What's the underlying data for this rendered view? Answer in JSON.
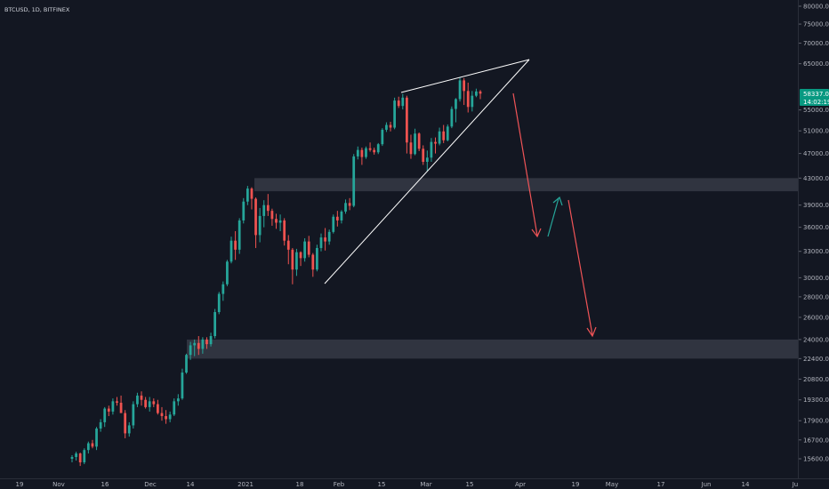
{
  "chart_data": {
    "type": "candlestick",
    "symbol": "BTCUSD, 1D, BITFINEX",
    "y_scale": "log",
    "ylim": [
      14500,
      82000
    ],
    "price_ticks": [
      "80000.0",
      "75000.0",
      "70000.0",
      "65000.0",
      "55000.0",
      "51000.0",
      "47000.0",
      "43000.0",
      "39000.0",
      "36000.0",
      "33000.0",
      "30000.0",
      "28000.0",
      "26000.0",
      "24000.0",
      "22400.0",
      "20800.0",
      "19300.0",
      "17900.0",
      "16700.0",
      "15600.0"
    ],
    "date_ticks": [
      "19",
      "Nov",
      "16",
      "Dec",
      "14",
      "2021",
      "18",
      "Feb",
      "15",
      "Mar",
      "15",
      "Apr",
      "19",
      "May",
      "17",
      "Jun",
      "14",
      "Ju"
    ],
    "last_price": {
      "price": "58337.0",
      "countdown": "14:02:19"
    },
    "zones": [
      {
        "name": "resistance-zone",
        "from": 41000,
        "to": 43000
      },
      {
        "name": "support-zone",
        "from": 22400,
        "to": 24000
      }
    ],
    "colors": {
      "bg": "#131722",
      "up": "#26a69a",
      "down": "#ef5350",
      "zone": "#363a45",
      "line": "#ffffff",
      "down_arrow": "#f05457",
      "up_arrow": "#26a69a",
      "axis_border": "#2a2e39",
      "price_label": "#089981"
    },
    "candles": [
      [
        15600,
        15800,
        15400,
        15700
      ],
      [
        15700,
        16000,
        15500,
        15900
      ],
      [
        15900,
        15950,
        15200,
        15400
      ],
      [
        15400,
        16200,
        15300,
        16100
      ],
      [
        16100,
        16600,
        15900,
        16500
      ],
      [
        16500,
        16700,
        16200,
        16300
      ],
      [
        16300,
        17500,
        16100,
        17400
      ],
      [
        17400,
        18000,
        17200,
        17800
      ],
      [
        17800,
        18800,
        17500,
        18700
      ],
      [
        18700,
        18900,
        18200,
        18500
      ],
      [
        18500,
        19400,
        18300,
        19200
      ],
      [
        19200,
        19500,
        18900,
        19100
      ],
      [
        19100,
        19600,
        18800,
        18400
      ],
      [
        18400,
        18600,
        16800,
        17100
      ],
      [
        17100,
        17800,
        16900,
        17600
      ],
      [
        17600,
        19200,
        17400,
        19000
      ],
      [
        19000,
        19800,
        18800,
        19600
      ],
      [
        19600,
        19900,
        18900,
        19300
      ],
      [
        19300,
        19500,
        18700,
        18800
      ],
      [
        18800,
        19500,
        18500,
        19200
      ],
      [
        19200,
        19400,
        18800,
        19000
      ],
      [
        19000,
        19300,
        18300,
        18400
      ],
      [
        18400,
        18800,
        17900,
        18200
      ],
      [
        18200,
        18600,
        17700,
        18000
      ],
      [
        18000,
        18500,
        17800,
        18300
      ],
      [
        18300,
        19400,
        18200,
        19200
      ],
      [
        19200,
        19700,
        18900,
        19400
      ],
      [
        19400,
        21600,
        19300,
        21300
      ],
      [
        21300,
        22800,
        21200,
        22700
      ],
      [
        22700,
        23800,
        22300,
        23500
      ],
      [
        23500,
        24000,
        22600,
        23700
      ],
      [
        23700,
        24300,
        22700,
        23200
      ],
      [
        23200,
        24200,
        22800,
        24000
      ],
      [
        24000,
        24200,
        23200,
        23600
      ],
      [
        23600,
        24600,
        23400,
        24300
      ],
      [
        24300,
        26800,
        24100,
        26500
      ],
      [
        26500,
        28500,
        26300,
        28300
      ],
      [
        28300,
        29600,
        27600,
        29300
      ],
      [
        29300,
        32000,
        29100,
        31800
      ],
      [
        31800,
        34800,
        31600,
        34300
      ],
      [
        34300,
        35500,
        32000,
        33200
      ],
      [
        33200,
        37200,
        32700,
        36900
      ],
      [
        36900,
        40000,
        36500,
        39500
      ],
      [
        39500,
        41800,
        39000,
        41400
      ],
      [
        41400,
        41600,
        38400,
        39900
      ],
      [
        39900,
        40100,
        33400,
        35000
      ],
      [
        35000,
        38600,
        34100,
        37500
      ],
      [
        37500,
        39700,
        36000,
        39000
      ],
      [
        39000,
        40600,
        37500,
        38200
      ],
      [
        38200,
        38500,
        36200,
        37100
      ],
      [
        37100,
        37800,
        35800,
        36600
      ],
      [
        36600,
        37700,
        35500,
        36900
      ],
      [
        36900,
        37200,
        33700,
        34300
      ],
      [
        34300,
        35000,
        31500,
        33200
      ],
      [
        33200,
        33400,
        29300,
        30900
      ],
      [
        30900,
        33300,
        30200,
        32900
      ],
      [
        32900,
        33000,
        31300,
        32200
      ],
      [
        32200,
        34600,
        31800,
        34200
      ],
      [
        34200,
        34900,
        32300,
        32600
      ],
      [
        32600,
        32800,
        30100,
        30900
      ],
      [
        30900,
        33800,
        30700,
        33400
      ],
      [
        33400,
        35200,
        33000,
        34700
      ],
      [
        34700,
        35900,
        33100,
        34200
      ],
      [
        34200,
        35700,
        33800,
        35400
      ],
      [
        35400,
        37700,
        35200,
        37400
      ],
      [
        37400,
        38200,
        36100,
        36900
      ],
      [
        36900,
        38300,
        36500,
        38100
      ],
      [
        38100,
        39800,
        37800,
        39300
      ],
      [
        39300,
        40000,
        38300,
        38900
      ],
      [
        38900,
        46900,
        38700,
        46500
      ],
      [
        46500,
        48200,
        46000,
        47600
      ],
      [
        47600,
        48000,
        45100,
        46400
      ],
      [
        46400,
        48200,
        46100,
        47900
      ],
      [
        47900,
        48900,
        47300,
        47600
      ],
      [
        47600,
        48000,
        46800,
        47200
      ],
      [
        47200,
        48800,
        46900,
        48600
      ],
      [
        48600,
        51500,
        48300,
        51200
      ],
      [
        51200,
        52600,
        50800,
        52100
      ],
      [
        52100,
        52700,
        50900,
        51600
      ],
      [
        51600,
        57500,
        51300,
        56900
      ],
      [
        56900,
        57700,
        55400,
        55800
      ],
      [
        55800,
        58300,
        55100,
        57500
      ],
      [
        57500,
        57900,
        47000,
        48900
      ],
      [
        48900,
        50300,
        46100,
        46900
      ],
      [
        46900,
        51400,
        46700,
        50500
      ],
      [
        50500,
        50700,
        47400,
        47800
      ],
      [
        47800,
        48400,
        45100,
        45600
      ],
      [
        45600,
        47500,
        44100,
        46300
      ],
      [
        46300,
        49700,
        45600,
        49000
      ],
      [
        49000,
        49800,
        47000,
        48700
      ],
      [
        48700,
        51600,
        48400,
        50900
      ],
      [
        50900,
        52100,
        48800,
        49300
      ],
      [
        49300,
        52200,
        49100,
        51800
      ],
      [
        51800,
        55700,
        51500,
        55200
      ],
      [
        55200,
        57400,
        52600,
        57200
      ],
      [
        57200,
        61800,
        56700,
        61200
      ],
      [
        61200,
        61700,
        56000,
        58900
      ],
      [
        58900,
        60700,
        54500,
        55600
      ],
      [
        55600,
        58900,
        54700,
        57900
      ],
      [
        57900,
        59400,
        57600,
        58800
      ],
      [
        58800,
        59100,
        57200,
        58337
      ]
    ]
  }
}
